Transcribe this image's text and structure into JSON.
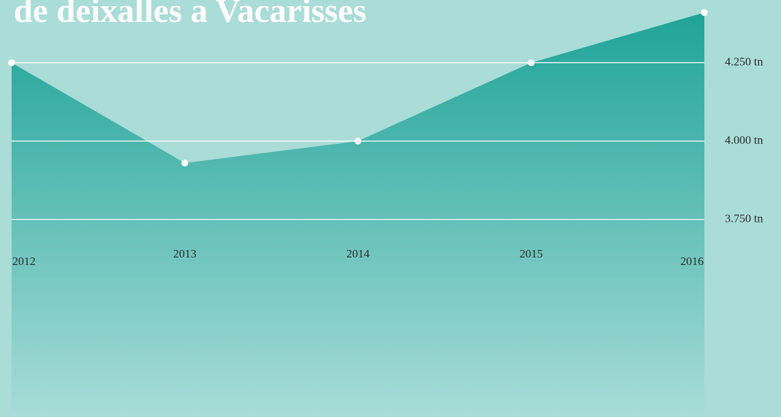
{
  "chart_data": {
    "type": "area",
    "title": "de deixalles a Vacarisses",
    "categories": [
      "2012",
      "2013",
      "2014",
      "2015",
      "2016"
    ],
    "values": [
      4250,
      3930,
      4000,
      4250,
      4410
    ],
    "color": "#1fa398",
    "ylim": [
      3120,
      4450
    ],
    "yticks": [
      {
        "value": 3750,
        "label": "3.750 tn"
      },
      {
        "value": 4000,
        "label": "4.000 tn"
      },
      {
        "value": 4250,
        "label": "4.250 tn"
      }
    ],
    "grid": true
  }
}
